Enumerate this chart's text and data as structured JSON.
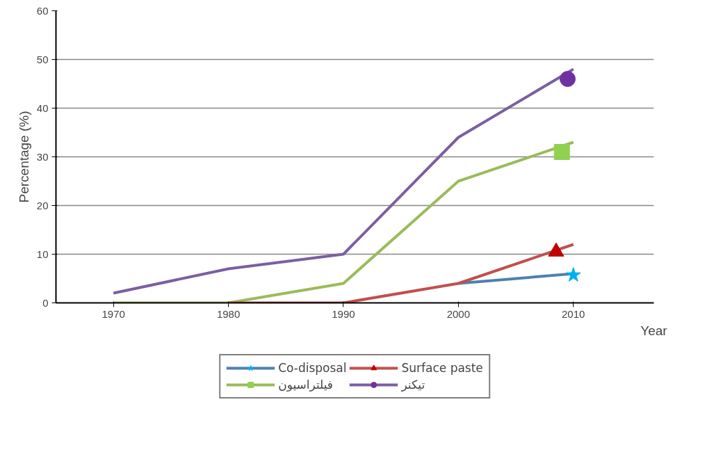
{
  "chart_data": {
    "type": "line",
    "ylabel": "Percentage (%)",
    "xlabel": "Year",
    "xlim": [
      1965,
      2017
    ],
    "xticks": [
      1970,
      1980,
      1990,
      2000,
      2010
    ],
    "ylim": [
      0,
      60
    ],
    "yticks": [
      0,
      10,
      20,
      30,
      40,
      50,
      60
    ],
    "grid": "y",
    "legend": "bottom",
    "series": [
      {
        "name": "Co-disposal",
        "color": "#4f7fb0",
        "x": [
          2000,
          2010
        ],
        "values": [
          4,
          6
        ]
      },
      {
        "name": "فیلتراسیون",
        "color": "#9bbb59",
        "x": [
          1970,
          1980,
          1990,
          2000,
          2010
        ],
        "values": [
          0,
          0,
          4,
          25,
          33
        ]
      },
      {
        "name": "Surface paste",
        "color": "#c0504d",
        "x": [
          1980,
          1990,
          2000,
          2010
        ],
        "values": [
          0,
          0,
          4,
          12
        ]
      },
      {
        "name": "تیکنر",
        "color": "#7a5fa0",
        "x": [
          1970,
          1980,
          1990,
          2000,
          2010
        ],
        "values": [
          2,
          7,
          10,
          34,
          48
        ]
      },
      {
        "type": "scatter",
        "marker": "star",
        "color": "#00b0f0",
        "x": [
          2010
        ],
        "values": [
          5.7
        ]
      },
      {
        "type": "scatter",
        "marker": "square",
        "color": "#92d050",
        "x": [
          2009
        ],
        "values": [
          31
        ]
      },
      {
        "type": "scatter",
        "marker": "triangle",
        "color": "#c00000",
        "x": [
          2008.5
        ],
        "values": [
          10.5
        ]
      },
      {
        "type": "scatter",
        "marker": "circle",
        "color": "#7030a0",
        "x": [
          2009.5
        ],
        "values": [
          46
        ]
      }
    ]
  }
}
